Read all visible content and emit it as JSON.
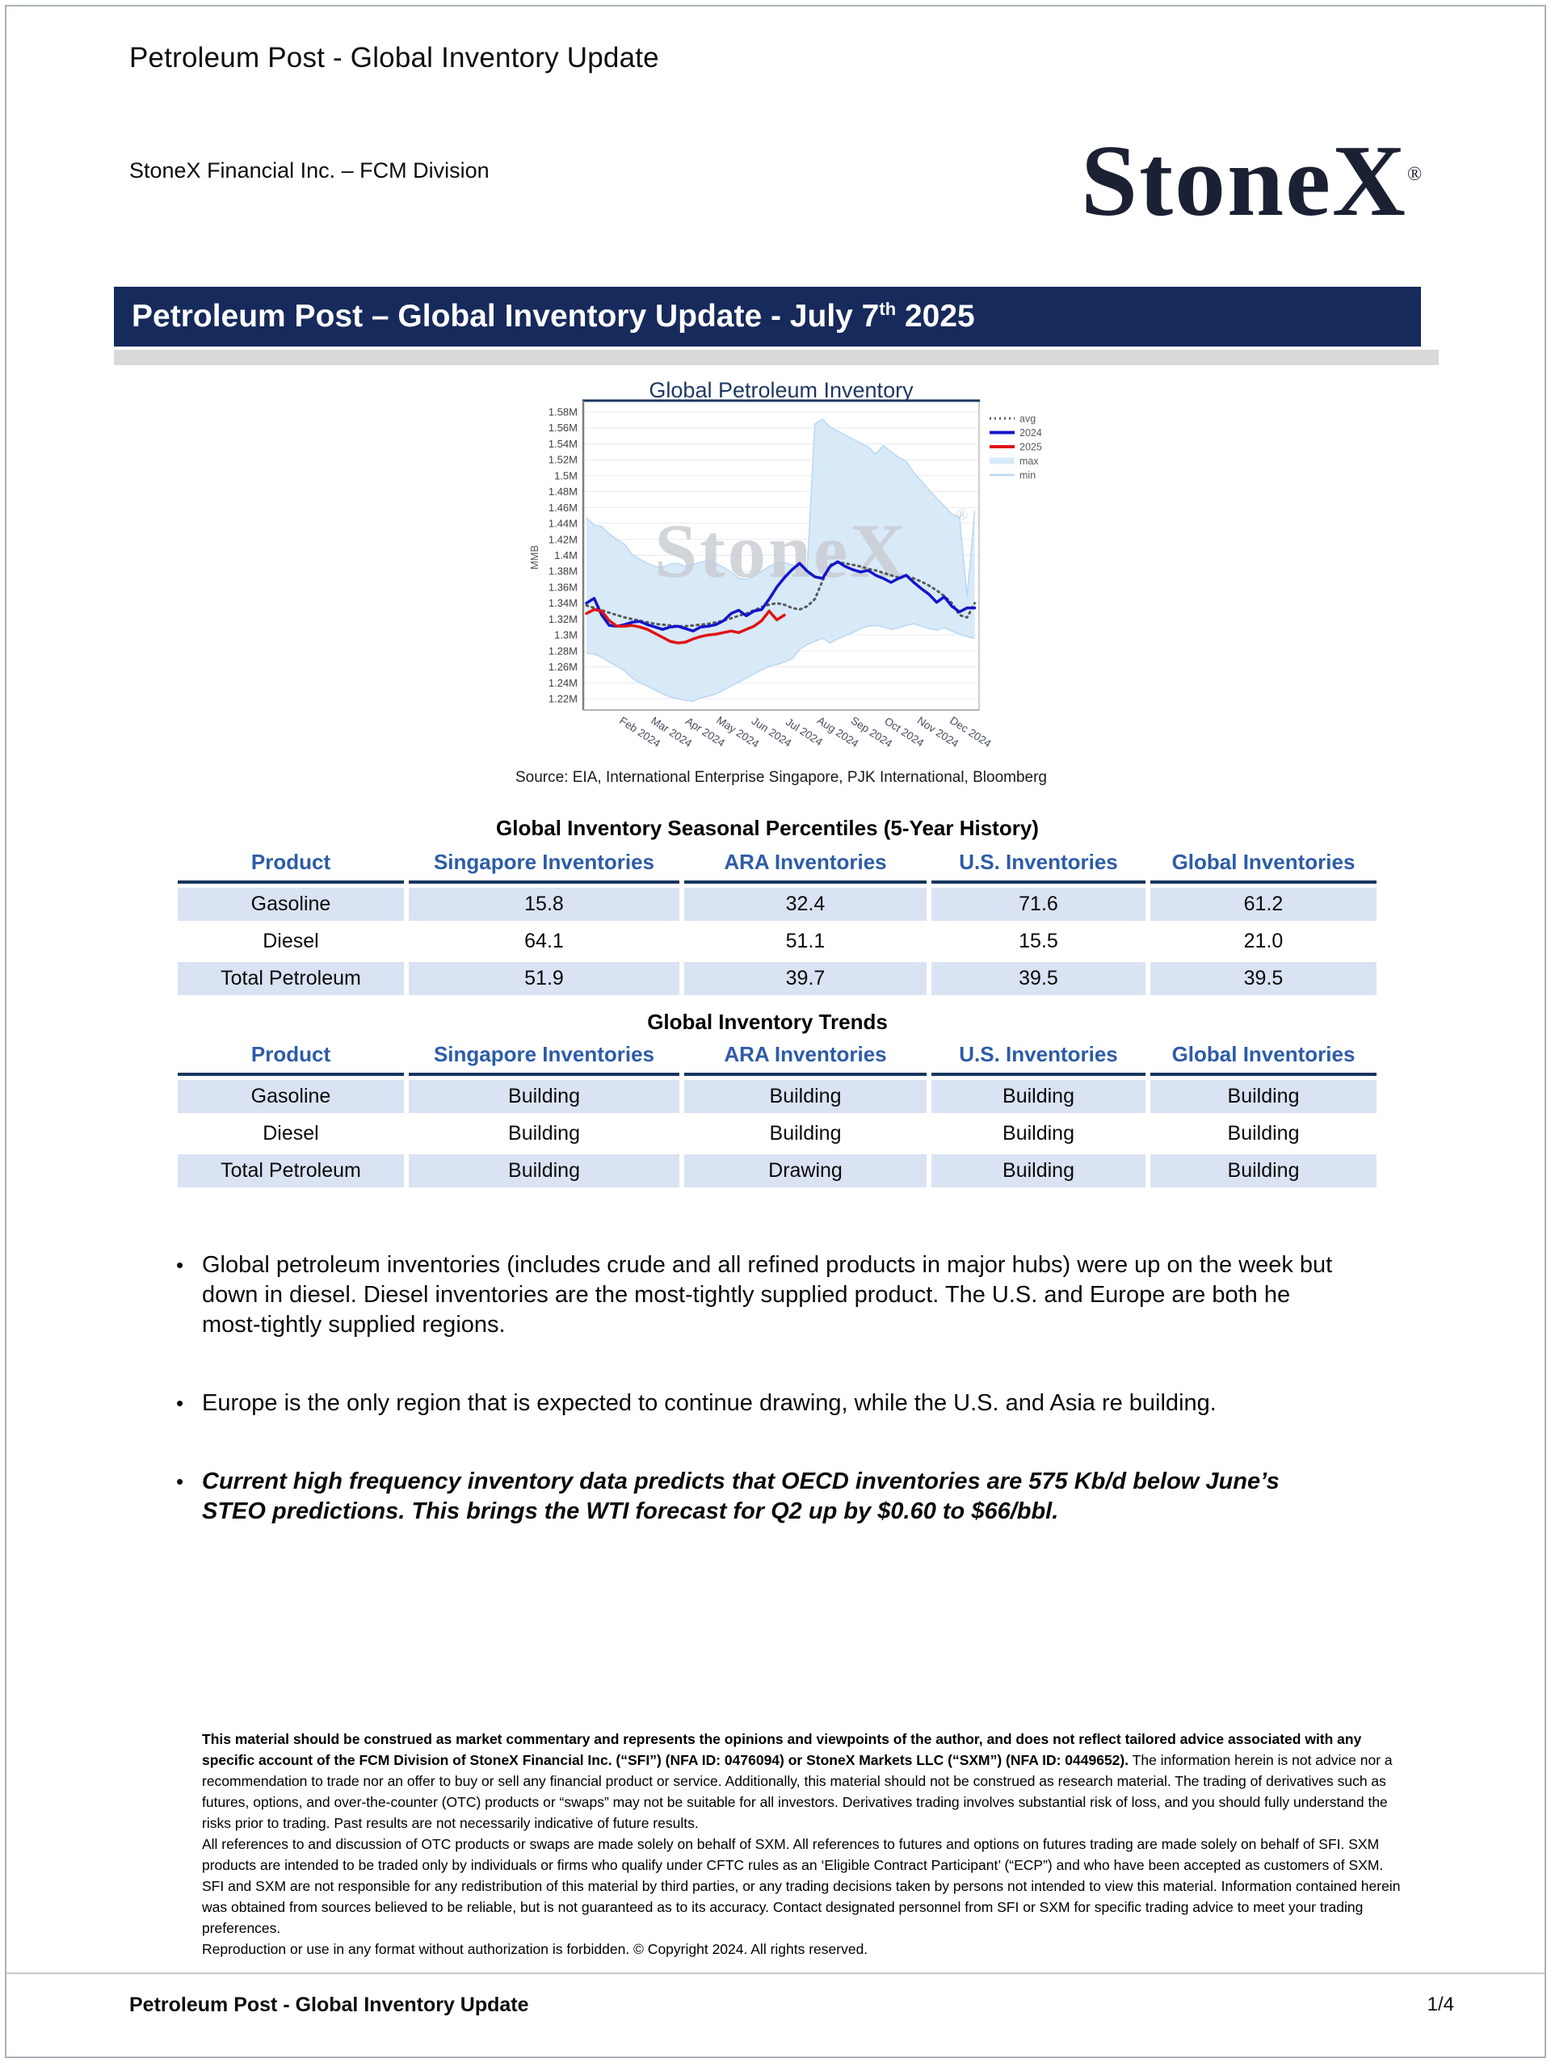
{
  "page": {
    "doc_title": "Petroleum Post - Global Inventory Update",
    "division": "StoneX Financial Inc. – FCM Division",
    "logo_text": "StoneX",
    "logo_reg": "®",
    "banner": {
      "main": "Petroleum Post – Global Inventory Update -  July 7",
      "sup": "th",
      "tail": " 2025"
    },
    "footer": {
      "left": "Petroleum Post - Global Inventory Update",
      "page": "1/4"
    }
  },
  "source_line": "Source: EIA, International Enterprise Singapore, PJK International, Bloomberg",
  "chart_data": {
    "type": "line",
    "title": "Global Petroleum Inventory",
    "ylabel": "MMB",
    "watermark": "StoneX",
    "watermark_reg": "®",
    "ylim": [
      1.22,
      1.58
    ],
    "xlim_days": [
      0,
      364
    ],
    "grid": true,
    "legend_position": "right-outside-top",
    "y_ticks": [
      1.58,
      1.56,
      1.54,
      1.52,
      1.5,
      1.48,
      1.46,
      1.44,
      1.42,
      1.4,
      1.38,
      1.36,
      1.34,
      1.32,
      1.3,
      1.28,
      1.26,
      1.24,
      1.22
    ],
    "y_tick_labels": [
      "1.58M",
      "1.56M",
      "1.54M",
      "1.52M",
      "1.5M",
      "1.48M",
      "1.46M",
      "1.44M",
      "1.42M",
      "1.4M",
      "1.38M",
      "1.36M",
      "1.34M",
      "1.32M",
      "1.3M",
      "1.28M",
      "1.26M",
      "1.24M",
      "1.22M"
    ],
    "x_ticks": {
      "days": [
        31,
        60,
        91,
        121,
        152,
        182,
        213,
        244,
        274,
        305,
        335
      ],
      "labels": [
        "Feb 2024",
        "Mar 2024",
        "Apr 2024",
        "May 2024",
        "Jun 2024",
        "Jul 2024",
        "Aug 2024",
        "Sep 2024",
        "Oct 2024",
        "Nov 2024",
        "Dec 2024"
      ]
    },
    "legend": [
      {
        "key": "avg",
        "label": "avg"
      },
      {
        "key": "y2024",
        "label": "2024"
      },
      {
        "key": "y2025",
        "label": "2025"
      },
      {
        "key": "max",
        "label": "max"
      },
      {
        "key": "min",
        "label": "min"
      }
    ],
    "units": "MMB (values in millions of barrels, weekly)",
    "series": {
      "avg": [
        1.337,
        1.334,
        1.331,
        1.328,
        1.325,
        1.322,
        1.32,
        1.318,
        1.316,
        1.314,
        1.313,
        1.312,
        1.311,
        1.311,
        1.312,
        1.313,
        1.314,
        1.316,
        1.318,
        1.321,
        1.324,
        1.327,
        1.331,
        1.335,
        1.338,
        1.34,
        1.338,
        1.334,
        1.332,
        1.336,
        1.345,
        1.368,
        1.388,
        1.391,
        1.39,
        1.388,
        1.386,
        1.383,
        1.381,
        1.378,
        1.375,
        1.372,
        1.374,
        1.371,
        1.367,
        1.362,
        1.356,
        1.349,
        1.34,
        1.325,
        1.322,
        1.34
      ],
      "y2024": [
        1.34,
        1.346,
        1.325,
        1.312,
        1.311,
        1.313,
        1.316,
        1.317,
        1.313,
        1.31,
        1.307,
        1.31,
        1.311,
        1.308,
        1.305,
        1.31,
        1.311,
        1.313,
        1.318,
        1.327,
        1.331,
        1.324,
        1.33,
        1.332,
        1.345,
        1.36,
        1.372,
        1.382,
        1.39,
        1.38,
        1.373,
        1.371,
        1.386,
        1.392,
        1.386,
        1.382,
        1.379,
        1.381,
        1.375,
        1.371,
        1.366,
        1.371,
        1.375,
        1.366,
        1.358,
        1.351,
        1.341,
        1.348,
        1.336,
        1.329,
        1.334,
        1.334
      ],
      "y2025": [
        1.327,
        1.332,
        1.33,
        1.318,
        1.311,
        1.311,
        1.312,
        1.31,
        1.307,
        1.302,
        1.297,
        1.292,
        1.29,
        1.291,
        1.295,
        1.298,
        1.3,
        1.301,
        1.303,
        1.305,
        1.303,
        1.307,
        1.311,
        1.318,
        1.33,
        1.319,
        1.325
      ],
      "max": [
        1.447,
        1.438,
        1.436,
        1.427,
        1.42,
        1.414,
        1.401,
        1.395,
        1.39,
        1.386,
        1.385,
        1.389,
        1.39,
        1.386,
        1.389,
        1.391,
        1.394,
        1.39,
        1.385,
        1.379,
        1.371,
        1.37,
        1.374,
        1.38,
        1.386,
        1.39,
        1.391,
        1.388,
        1.385,
        1.383,
        1.565,
        1.571,
        1.561,
        1.556,
        1.551,
        1.546,
        1.541,
        1.536,
        1.527,
        1.538,
        1.53,
        1.523,
        1.518,
        1.504,
        1.493,
        1.482,
        1.472,
        1.462,
        1.452,
        1.448,
        1.348,
        1.456
      ],
      "min": [
        1.277,
        1.276,
        1.272,
        1.266,
        1.261,
        1.255,
        1.246,
        1.24,
        1.236,
        1.231,
        1.226,
        1.222,
        1.22,
        1.218,
        1.217,
        1.221,
        1.223,
        1.226,
        1.231,
        1.236,
        1.241,
        1.246,
        1.251,
        1.256,
        1.261,
        1.263,
        1.266,
        1.27,
        1.282,
        1.288,
        1.292,
        1.296,
        1.29,
        1.295,
        1.299,
        1.303,
        1.308,
        1.311,
        1.312,
        1.31,
        1.307,
        1.309,
        1.312,
        1.314,
        1.311,
        1.308,
        1.306,
        1.309,
        1.305,
        1.301,
        1.298,
        1.296
      ]
    },
    "colors": {
      "line_2024": "#1414cc",
      "line_2025": "#e01414",
      "avg_gray": "#595959",
      "band_fill": "#d8e9f8",
      "band_edge": "#bcd7f0",
      "title_navy": "#17365d",
      "tick_text": "#3f3f46",
      "xlabel_text": "#474f5e",
      "watermark_gray": "#c8cbd2"
    }
  },
  "tables": {
    "percentiles": {
      "title": "Global Inventory Seasonal Percentiles (5-Year History)",
      "headers": [
        "Product",
        "Singapore Inventories",
        "ARA Inventories",
        "U.S. Inventories",
        "Global Inventories"
      ],
      "rows": [
        {
          "label": "Gasoline",
          "values": [
            "15.8",
            "32.4",
            "71.6",
            "61.2"
          ]
        },
        {
          "label": "Diesel",
          "values": [
            "64.1",
            "51.1",
            "15.5",
            "21.0"
          ]
        },
        {
          "label": "Total Petroleum",
          "values": [
            "51.9",
            "39.7",
            "39.5",
            "39.5"
          ]
        }
      ]
    },
    "trends": {
      "title": "Global Inventory Trends",
      "headers": [
        "Product",
        "Singapore Inventories",
        "ARA Inventories",
        "U.S. Inventories",
        "Global Inventories"
      ],
      "rows": [
        {
          "label": "Gasoline",
          "values": [
            "Building",
            "Building",
            "Building",
            "Building"
          ]
        },
        {
          "label": "Diesel",
          "values": [
            "Building",
            "Building",
            "Building",
            "Building"
          ]
        },
        {
          "label": "Total Petroleum",
          "values": [
            "Building",
            "Drawing",
            "Building",
            "Building"
          ]
        }
      ]
    }
  },
  "bullets": [
    {
      "text": "Global petroleum inventories (includes crude and all refined products in major hubs) were up on the week but down in diesel. Diesel inventories are the most-tightly supplied product. The U.S. and Europe are both he most-tightly supplied regions."
    },
    {
      "text": "Europe is the only region that is expected to continue drawing, while the U.S. and Asia re building."
    },
    {
      "text": "Current high frequency inventory data predicts that OECD inventories are 575 Kb/d below June’s STEO predictions. This brings the WTI forecast for Q2 up by $0.60 to $66/bbl."
    }
  ],
  "disclaimer": {
    "p1_bold": "This material should be construed as market commentary and represents the opinions and viewpoints of the author, and does not reflect tailored advice associated with any specific account of the FCM Division of StoneX Financial Inc. (“SFI”) (NFA ID: 0476094) or StoneX Markets LLC (“SXM”) (NFA ID: 0449652).",
    "p1_rest": " The information herein is not advice nor a recommendation to trade nor an offer to buy or sell any financial product or service. Additionally, this material should not be construed as research material. The trading of derivatives such as futures, options, and over-the-counter (OTC) products or “swaps” may not be suitable for all investors. Derivatives trading involves substantial risk of loss, and you should fully understand the risks prior to trading. Past results are not necessarily indicative of future results.",
    "p2": "All references to and discussion of OTC products or swaps are made solely on behalf of SXM. All references to futures and options on futures trading are made solely on behalf of SFI. SXM products are intended to be traded only by individuals or firms who qualify under CFTC rules as an ‘Eligible Contract Participant’ (“ECP”) and who have been accepted as customers of SXM.",
    "p3": "SFI and SXM are not responsible for any redistribution of this material by third parties, or any trading decisions taken by persons not intended to view this material. Information contained herein was obtained from sources believed to be reliable, but is not guaranteed as to its accuracy. Contact designated personnel from SFI or SXM for specific trading advice to meet your trading preferences.",
    "p4": "Reproduction or use in any format without authorization is forbidden. © Copyright 2024. All rights reserved."
  }
}
